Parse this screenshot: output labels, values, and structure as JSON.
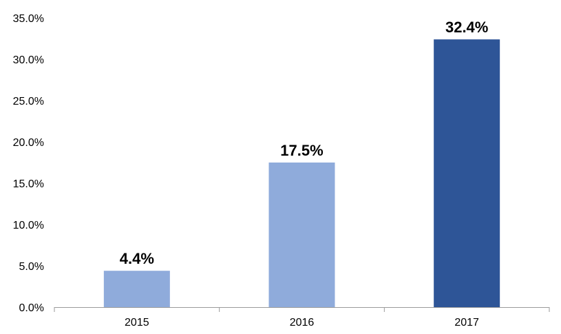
{
  "chart_data": {
    "type": "bar",
    "categories": [
      "2015",
      "2016",
      "2017"
    ],
    "values": [
      4.4,
      17.5,
      32.4
    ],
    "data_labels": [
      "4.4%",
      "17.5%",
      "32.4%"
    ],
    "bar_colors": [
      "#8fabdb",
      "#8fabdb",
      "#2e5597"
    ],
    "ylim": [
      0,
      35
    ],
    "y_ticks": [
      0,
      5,
      10,
      15,
      20,
      25,
      30,
      35
    ],
    "y_tick_labels": [
      "0.0%",
      "5.0%",
      "10.0%",
      "15.0%",
      "20.0%",
      "25.0%",
      "30.0%",
      "35.0%"
    ],
    "grid": false,
    "legend": "none",
    "title": "",
    "xlabel": "",
    "ylabel": ""
  }
}
